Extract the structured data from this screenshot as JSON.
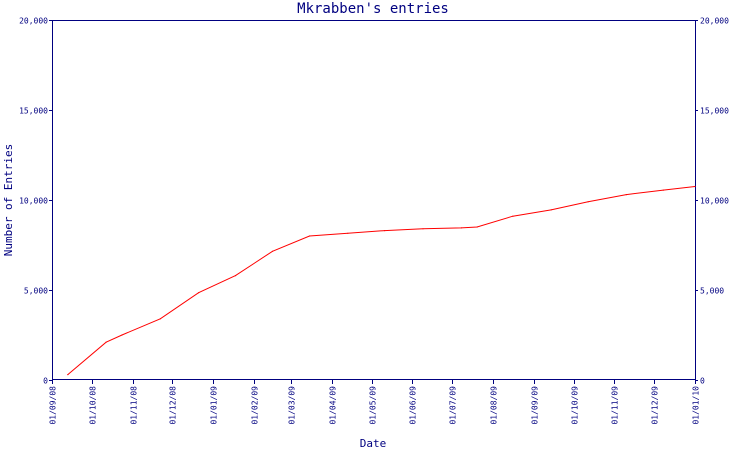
{
  "chart_data": {
    "type": "line",
    "title": "Mkrabben's entries",
    "xlabel": "Date",
    "ylabel": "Number of Entries",
    "ylim": [
      0,
      20000
    ],
    "xlim": [
      "2008-09-01",
      "2010-01-01"
    ],
    "yticks": [
      0,
      5000,
      10000,
      15000,
      20000
    ],
    "ytick_labels": [
      "0",
      "5,000",
      "10,000",
      "15,000",
      "20,000"
    ],
    "xticks": [
      "2008-09-01",
      "2008-10-01",
      "2008-11-01",
      "2008-12-01",
      "2009-01-01",
      "2009-02-01",
      "2009-03-01",
      "2009-04-01",
      "2009-05-01",
      "2009-06-01",
      "2009-07-01",
      "2009-08-01",
      "2009-09-01",
      "2009-10-01",
      "2009-11-01",
      "2009-12-01",
      "2010-01-01"
    ],
    "xtick_labels": [
      "01/09/08",
      "01/10/08",
      "01/11/08",
      "01/12/08",
      "01/01/09",
      "01/02/09",
      "01/03/09",
      "01/04/09",
      "01/05/09",
      "01/06/09",
      "01/07/09",
      "01/08/09",
      "01/09/09",
      "01/10/09",
      "01/11/09",
      "01/12/09",
      "01/01/10"
    ],
    "grid": false,
    "series": [
      {
        "color": "#ff0000",
        "x": [
          "2008-09-13",
          "2008-10-12",
          "2008-10-24",
          "2008-11-22",
          "2008-12-21",
          "2009-01-18",
          "2009-02-15",
          "2009-03-15",
          "2009-04-13",
          "2009-05-11",
          "2009-06-09",
          "2009-07-08",
          "2009-07-20",
          "2009-08-16",
          "2009-09-14",
          "2009-10-12",
          "2009-11-10",
          "2009-12-08",
          "2010-01-01"
        ],
        "values": [
          300,
          2100,
          2500,
          3400,
          4850,
          5800,
          7150,
          8000,
          8150,
          8300,
          8400,
          8450,
          8500,
          9100,
          9450,
          9900,
          10300,
          10550,
          10750
        ]
      }
    ]
  }
}
